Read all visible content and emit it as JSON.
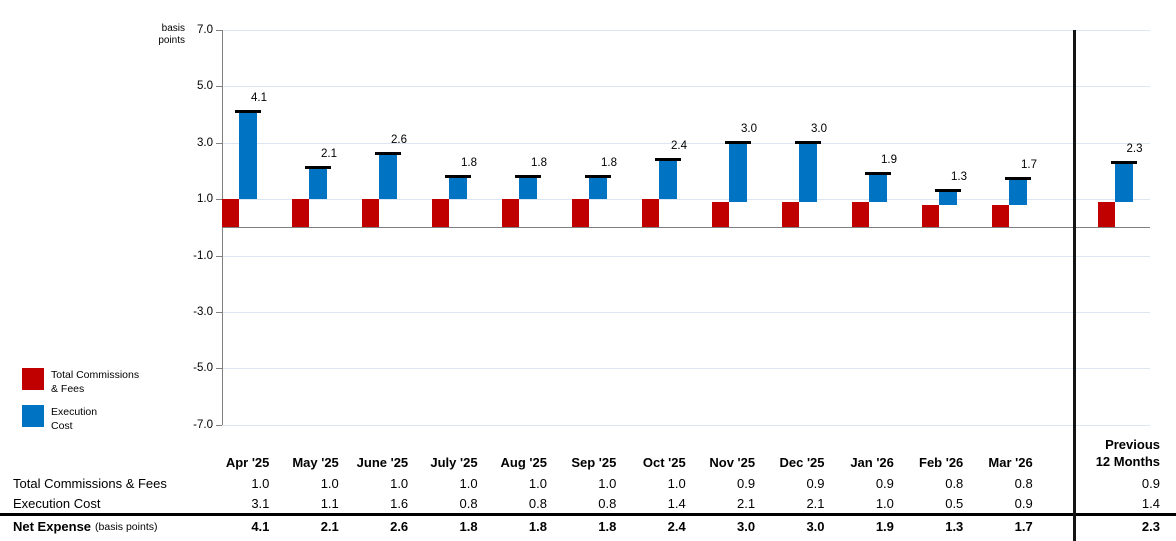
{
  "chart": {
    "y_axis_title_line1": "basis",
    "y_axis_title_line2": "points",
    "y_ticks": [
      {
        "value": 7,
        "label": "7.0"
      },
      {
        "value": 5,
        "label": "5.0"
      },
      {
        "value": 3,
        "label": "3.0"
      },
      {
        "value": 1,
        "label": "1.0"
      },
      {
        "value": -1,
        "label": "-1.0"
      },
      {
        "value": -3,
        "label": "-3.0"
      },
      {
        "value": -5,
        "label": "-5.0"
      },
      {
        "value": -7,
        "label": "-7.0"
      }
    ],
    "colors": {
      "commissions_red": "#C00000",
      "execution_blue": "#0073C2",
      "gridline": "#DCE6F2",
      "axis_gray": "#808080",
      "net_marker_black": "#000000",
      "separator_black": "#141414"
    }
  },
  "legend": {
    "items": [
      {
        "line1": "Total Commissions",
        "line2": "& Fees",
        "color": "#C00000"
      },
      {
        "line1": "Execution",
        "line2": "Cost",
        "color": "#0073C2"
      }
    ]
  },
  "chart_data": {
    "type": "bar",
    "stacked": true,
    "title": "",
    "ylabel": "basis points",
    "ylim": [
      -7.0,
      7.0
    ],
    "grid": true,
    "legend_position": "bottom-left",
    "categories": [
      "Apr '25",
      "May '25",
      "June '25",
      "July '25",
      "Aug '25",
      "Sep '25",
      "Oct '25",
      "Nov '25",
      "Dec '25",
      "Jan '26",
      "Feb '26",
      "Mar '26",
      "Previous 12 Months"
    ],
    "series": [
      {
        "name": "Total Commissions & Fees",
        "color": "#C00000",
        "values": [
          1.0,
          1.0,
          1.0,
          1.0,
          1.0,
          1.0,
          1.0,
          0.9,
          0.9,
          0.9,
          0.8,
          0.8,
          0.9
        ]
      },
      {
        "name": "Execution Cost",
        "color": "#0073C2",
        "values": [
          3.1,
          1.1,
          1.6,
          0.8,
          0.8,
          0.8,
          1.4,
          2.1,
          2.1,
          1.0,
          0.5,
          0.9,
          1.4
        ]
      }
    ],
    "totals": {
      "name": "Net Expense (basis points)",
      "values": [
        4.1,
        2.1,
        2.6,
        1.8,
        1.8,
        1.8,
        2.4,
        3.0,
        3.0,
        1.9,
        1.3,
        1.7,
        2.3
      ],
      "labels": [
        "4.1",
        "2.1",
        "2.6",
        "1.8",
        "1.8",
        "1.8",
        "2.4",
        "3.0",
        "3.0",
        "1.9",
        "1.3",
        "1.7",
        "2.3"
      ]
    }
  },
  "table": {
    "month_columns": [
      "Apr '25",
      "May '25",
      "June '25",
      "July '25",
      "Aug '25",
      "Sep '25",
      "Oct '25",
      "Nov '25",
      "Dec '25",
      "Jan '26",
      "Feb '26",
      "Mar '26"
    ],
    "previous_header_line1": "Previous",
    "previous_header_line2": "12 Months",
    "rows": [
      {
        "label": "Total Commissions & Fees",
        "suffix": "",
        "emphasis": false,
        "values": [
          "1.0",
          "1.0",
          "1.0",
          "1.0",
          "1.0",
          "1.0",
          "1.0",
          "0.9",
          "0.9",
          "0.9",
          "0.8",
          "0.8"
        ],
        "previous": "0.9"
      },
      {
        "label": "Execution Cost",
        "suffix": "",
        "emphasis": false,
        "values": [
          "3.1",
          "1.1",
          "1.6",
          "0.8",
          "0.8",
          "0.8",
          "1.4",
          "2.1",
          "2.1",
          "1.0",
          "0.5",
          "0.9"
        ],
        "previous": "1.4"
      },
      {
        "label": "Net Expense",
        "suffix": "(basis points)",
        "emphasis": true,
        "values": [
          "4.1",
          "2.1",
          "2.6",
          "1.8",
          "1.8",
          "1.8",
          "2.4",
          "3.0",
          "3.0",
          "1.9",
          "1.3",
          "1.7"
        ],
        "previous": "2.3"
      }
    ]
  }
}
